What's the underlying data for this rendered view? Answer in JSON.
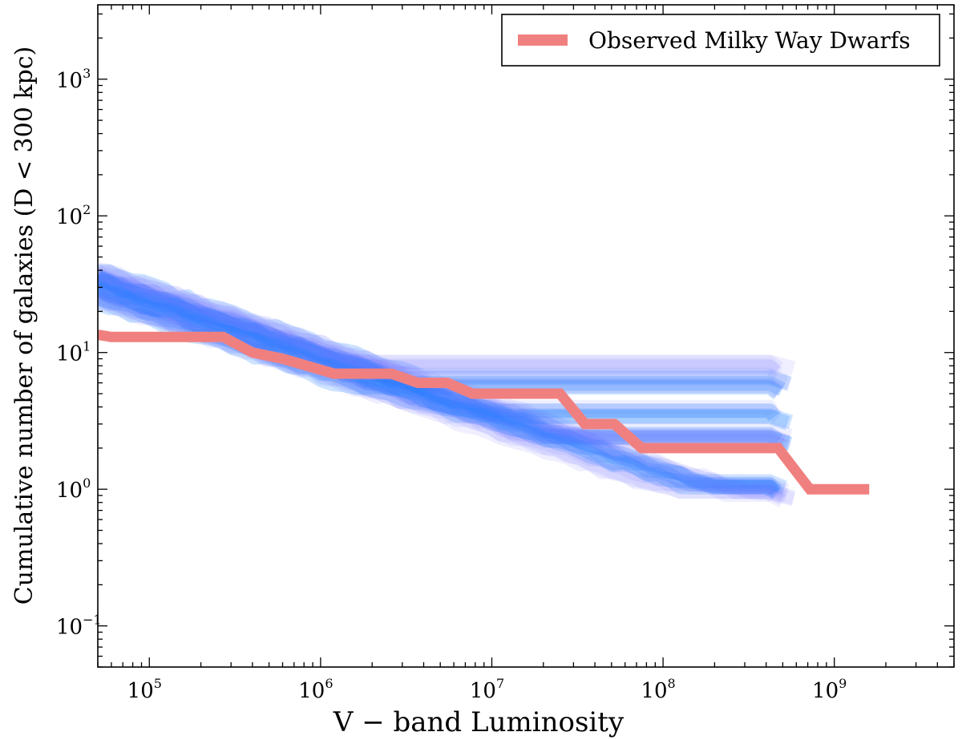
{
  "chart_data": {
    "type": "line",
    "title": "",
    "xlabel": "V − band Luminosity",
    "ylabel": "Cumulative number of galaxies (D < 300 kpc)",
    "xscale": "log",
    "yscale": "log",
    "xlim": [
      50000,
      5000000000
    ],
    "ylim": [
      0.05,
      3500
    ],
    "grid": false,
    "legend_position": "top-right",
    "x_ticks": [
      {
        "value": 100000,
        "base": "10",
        "exp": "5"
      },
      {
        "value": 1000000,
        "base": "10",
        "exp": "6"
      },
      {
        "value": 10000000,
        "base": "10",
        "exp": "7"
      },
      {
        "value": 100000000,
        "base": "10",
        "exp": "8"
      },
      {
        "value": 1000000000,
        "base": "10",
        "exp": "9"
      }
    ],
    "y_ticks": [
      {
        "value": 0.1,
        "base": "10",
        "exp": "−1"
      },
      {
        "value": 1,
        "base": "10",
        "exp": "0"
      },
      {
        "value": 10,
        "base": "10",
        "exp": "1"
      },
      {
        "value": 100,
        "base": "10",
        "exp": "2"
      },
      {
        "value": 1000,
        "base": "10",
        "exp": "3"
      }
    ],
    "series": [
      {
        "name": "Observed Milky Way Dwarfs",
        "color": "#f08080",
        "x": [
          50000,
          60000,
          270000,
          400000,
          600000,
          1200000,
          2600000,
          3700000,
          5500000,
          7700000,
          25000000,
          35000000,
          52000000,
          75000000,
          470000000,
          720000000,
          1600000000
        ],
        "y": [
          13.5,
          13,
          13,
          10,
          9,
          7,
          7,
          6,
          6,
          5,
          5,
          3,
          3,
          2,
          2,
          1,
          1
        ]
      }
    ],
    "simulated_realizations": {
      "label": "",
      "color": "#1e7fff",
      "secondary_color": "#7f7fff",
      "count": 40
    }
  }
}
